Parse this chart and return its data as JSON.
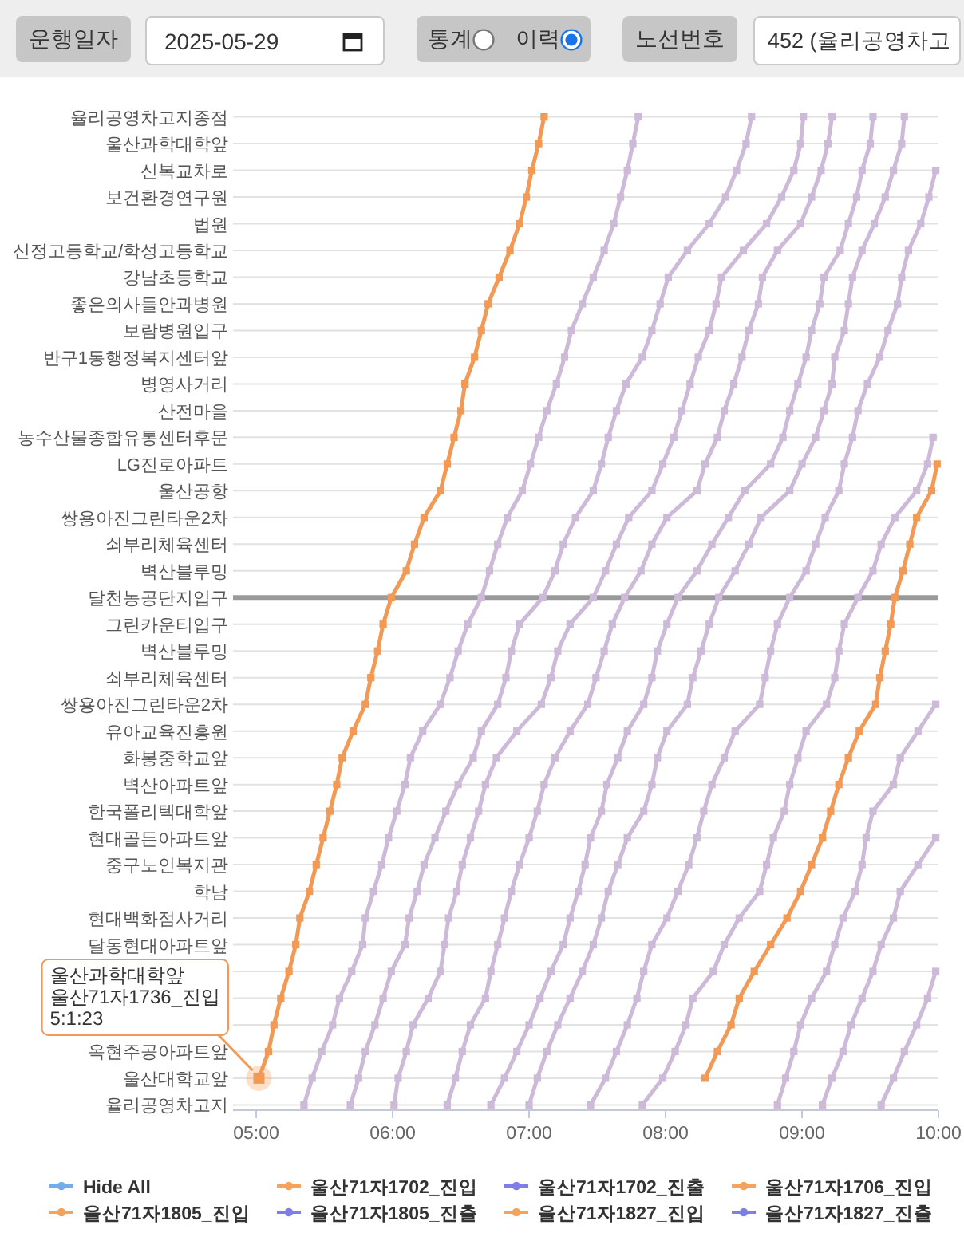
{
  "chart_data": {
    "type": "line",
    "orientation": "horizontal",
    "grid": "y",
    "marker": "square",
    "legend": "bottom",
    "categories": [
      "율리공영차고지종점",
      "울산과학대학앞",
      "신복교차로",
      "보건환경연구원",
      "법원",
      "신정고등학교/학성고등학교",
      "강남초등학교",
      "좋은의사들안과병원",
      "보람병원입구",
      "반구1동행정복지센터앞",
      "병영사거리",
      "산전마을",
      "농수산물종합유통센터후문",
      "LG진로아파트",
      "울산공항",
      "쌍용아진그린타운2차",
      "쇠부리체육센터",
      "벽산블루밍",
      "달천농공단지입구",
      "그린카운티입구",
      "벽산블루밍",
      "쇠부리체육센터",
      "쌍용아진그린타운2차",
      "유아교육진흥원",
      "화봉중학교앞",
      "벽산아파트앞",
      "한국폴리텍대학앞",
      "현대골든아파트앞",
      "중구노인복지관",
      "학남",
      "현대백화점사거리",
      "달동현대아파트앞",
      null,
      null,
      null,
      "옥현주공아파트앞",
      "울산대학교앞",
      "율리공영차고지"
    ],
    "xlim": [
      4.83,
      10.0
    ],
    "xticks": [
      {
        "value": 5,
        "label": "05:00"
      },
      {
        "value": 6,
        "label": "06:00"
      },
      {
        "value": 7,
        "label": "07:00"
      },
      {
        "value": 8,
        "label": "08:00"
      },
      {
        "value": 9,
        "label": "09:00"
      },
      {
        "value": 10,
        "label": "10:00"
      }
    ],
    "ref_lines": [
      {
        "axis": "y",
        "value": "달천농공단지입구",
        "color": "#9a9a9a"
      }
    ],
    "series": [
      {
        "color": "#cdbad8",
        "values": [
          7.8,
          7.76,
          7.72,
          7.67,
          7.62,
          7.55,
          7.47,
          7.39,
          7.31,
          7.26,
          7.2,
          7.13,
          7.07,
          7.01,
          6.95,
          6.84,
          6.77,
          6.71,
          6.65,
          6.55,
          6.48,
          6.42,
          6.35,
          6.22,
          6.13,
          6.09,
          6.03,
          5.97,
          5.92,
          5.86,
          5.8,
          5.78,
          5.7,
          5.61,
          5.56,
          5.48,
          5.41,
          5.35
        ]
      },
      {
        "color": "#cdbad8",
        "values": [
          8.63,
          8.59,
          8.52,
          8.44,
          8.32,
          8.16,
          8.02,
          7.96,
          7.9,
          7.83,
          7.71,
          7.64,
          7.58,
          7.53,
          7.47,
          7.34,
          7.25,
          7.19,
          7.1,
          6.93,
          6.87,
          6.83,
          6.77,
          6.65,
          6.59,
          6.48,
          6.39,
          6.31,
          6.23,
          6.18,
          6.12,
          6.09,
          5.99,
          5.93,
          5.87,
          5.8,
          5.75,
          5.69
        ]
      },
      {
        "color": "#cdbad8",
        "values": [
          9.01,
          8.99,
          8.94,
          8.85,
          8.74,
          8.57,
          8.41,
          8.37,
          8.32,
          8.24,
          8.18,
          8.12,
          8.06,
          7.98,
          7.9,
          7.73,
          7.64,
          7.56,
          7.47,
          7.3,
          7.21,
          7.16,
          7.09,
          6.91,
          6.76,
          6.68,
          6.63,
          6.57,
          6.51,
          6.47,
          6.41,
          6.38,
          6.35,
          6.26,
          6.15,
          6.1,
          6.04,
          6.01
        ]
      },
      {
        "color": "#cdbad8",
        "values": [
          9.22,
          9.19,
          9.14,
          9.07,
          8.99,
          8.82,
          8.71,
          8.68,
          8.61,
          8.56,
          8.5,
          8.43,
          8.38,
          8.29,
          8.23,
          8.01,
          7.9,
          7.82,
          7.7,
          7.61,
          7.55,
          7.49,
          7.43,
          7.3,
          7.19,
          7.11,
          7.06,
          7.0,
          6.93,
          6.87,
          6.82,
          6.77,
          6.72,
          6.68,
          6.57,
          6.51,
          6.46,
          6.4
        ]
      },
      {
        "color": "#cdbad8",
        "values": [
          9.52,
          9.5,
          9.44,
          9.4,
          9.34,
          9.28,
          9.16,
          9.13,
          9.07,
          9.03,
          8.97,
          8.91,
          8.86,
          8.77,
          8.58,
          8.46,
          8.34,
          8.23,
          8.09,
          8.01,
          7.94,
          7.9,
          7.84,
          7.72,
          7.65,
          7.57,
          7.53,
          7.45,
          7.41,
          7.36,
          7.3,
          7.25,
          7.16,
          7.08,
          7.0,
          6.91,
          6.82,
          6.72
        ]
      },
      {
        "color": "#cdbad8",
        "values": [
          9.75,
          9.73,
          9.67,
          9.61,
          9.53,
          9.44,
          9.37,
          9.34,
          9.31,
          9.24,
          9.22,
          9.16,
          9.1,
          9.0,
          8.91,
          8.7,
          8.61,
          8.51,
          8.39,
          8.32,
          8.26,
          8.2,
          8.16,
          8.01,
          7.94,
          7.9,
          7.84,
          7.72,
          7.65,
          7.58,
          7.53,
          7.47,
          7.39,
          7.3,
          7.21,
          7.13,
          7.06,
          7.0
        ]
      },
      {
        "color": "#cdbad8",
        "values": [
          null,
          null,
          9.98,
          9.93,
          9.87,
          9.78,
          9.73,
          9.7,
          9.63,
          9.57,
          9.48,
          9.41,
          9.37,
          9.31,
          9.27,
          9.17,
          9.1,
          9.03,
          8.91,
          8.82,
          8.77,
          8.73,
          8.69,
          8.51,
          8.43,
          8.34,
          8.28,
          8.23,
          8.17,
          8.09,
          8.01,
          7.9,
          7.84,
          7.79,
          7.72,
          7.64,
          7.56,
          7.45
        ]
      },
      {
        "color": "#cdbad8",
        "values": [
          null,
          null,
          null,
          null,
          null,
          null,
          null,
          null,
          null,
          null,
          null,
          null,
          9.96,
          9.92,
          9.84,
          9.68,
          9.58,
          9.52,
          9.41,
          9.31,
          9.27,
          9.24,
          9.18,
          9.03,
          8.97,
          8.91,
          8.87,
          8.79,
          8.74,
          8.69,
          8.54,
          8.43,
          8.35,
          8.2,
          8.15,
          8.07,
          7.98,
          7.83
        ]
      },
      {
        "color": "#cdbad8",
        "values": [
          null,
          null,
          null,
          null,
          null,
          null,
          null,
          null,
          null,
          null,
          null,
          null,
          null,
          null,
          null,
          null,
          null,
          null,
          null,
          null,
          null,
          null,
          9.98,
          9.85,
          9.72,
          9.67,
          9.52,
          9.47,
          9.44,
          9.39,
          9.3,
          9.24,
          9.18,
          9.07,
          8.99,
          8.94,
          8.88,
          8.82
        ]
      },
      {
        "color": "#cdbad8",
        "values": [
          null,
          null,
          null,
          null,
          null,
          null,
          null,
          null,
          null,
          null,
          null,
          null,
          null,
          null,
          null,
          null,
          null,
          null,
          null,
          null,
          null,
          null,
          null,
          null,
          null,
          null,
          null,
          9.98,
          9.85,
          9.72,
          9.67,
          9.58,
          9.52,
          9.44,
          9.36,
          9.3,
          9.22,
          9.15
        ]
      },
      {
        "color": "#cdbad8",
        "values": [
          null,
          null,
          null,
          null,
          null,
          null,
          null,
          null,
          null,
          null,
          null,
          null,
          null,
          null,
          null,
          null,
          null,
          null,
          null,
          null,
          null,
          null,
          null,
          null,
          null,
          null,
          null,
          null,
          null,
          null,
          null,
          null,
          9.98,
          9.92,
          9.84,
          9.75,
          9.67,
          9.58
        ]
      },
      {
        "color": "#f29a55",
        "values": [
          7.11,
          7.07,
          7.02,
          6.98,
          6.93,
          6.86,
          6.78,
          6.7,
          6.65,
          6.6,
          6.53,
          6.5,
          6.45,
          6.4,
          6.35,
          6.23,
          6.16,
          6.1,
          5.99,
          5.93,
          5.89,
          5.84,
          5.8,
          5.71,
          5.63,
          5.59,
          5.54,
          5.49,
          5.44,
          5.39,
          5.32,
          5.29,
          5.24,
          5.18,
          5.13,
          5.09,
          5.02,
          null
        ]
      },
      {
        "color": "#f29a55",
        "values": [
          null,
          null,
          null,
          null,
          null,
          null,
          null,
          null,
          null,
          null,
          null,
          null,
          null,
          9.99,
          9.95,
          9.84,
          9.79,
          9.74,
          9.68,
          9.65,
          9.61,
          9.57,
          9.54,
          9.42,
          9.34,
          9.27,
          9.21,
          9.15,
          9.07,
          8.99,
          8.89,
          8.77,
          8.65,
          8.54,
          8.48,
          8.38,
          8.29,
          null
        ]
      },
      {
        "name": "Hide All",
        "color": "#74acea",
        "values": [
          null,
          null,
          null,
          null,
          null,
          null,
          null,
          null,
          null,
          null,
          null,
          null,
          null,
          null,
          null,
          null,
          null,
          null,
          null,
          null,
          null,
          null,
          null,
          null,
          null,
          null,
          null,
          null,
          null,
          null,
          null,
          null,
          null,
          null,
          null,
          null,
          null,
          null
        ]
      },
      {
        "name": "울산71자1702_진입",
        "color": "#f5a25d",
        "values": [
          null,
          null,
          null,
          null,
          null,
          null,
          null,
          null,
          null,
          null,
          null,
          null,
          null,
          null,
          null,
          null,
          null,
          null,
          null,
          null,
          null,
          null,
          null,
          null,
          null,
          null,
          null,
          null,
          null,
          null,
          null,
          null,
          null,
          null,
          null,
          null,
          null,
          null
        ]
      },
      {
        "name": "울산71자1702_진출",
        "color": "#7f7ee6",
        "values": [
          null,
          null,
          null,
          null,
          null,
          null,
          null,
          null,
          null,
          null,
          null,
          null,
          null,
          null,
          null,
          null,
          null,
          null,
          null,
          null,
          null,
          null,
          null,
          null,
          null,
          null,
          null,
          null,
          null,
          null,
          null,
          null,
          null,
          null,
          null,
          null,
          null,
          null
        ]
      },
      {
        "name": "울산71자1706_진입",
        "color": "#f5a25d",
        "values": [
          null,
          null,
          null,
          null,
          null,
          null,
          null,
          null,
          null,
          null,
          null,
          null,
          null,
          null,
          null,
          null,
          null,
          null,
          null,
          null,
          null,
          null,
          null,
          null,
          null,
          null,
          null,
          null,
          null,
          null,
          null,
          null,
          null,
          null,
          null,
          null,
          null,
          null
        ]
      },
      {
        "name": "울산71자1805_진입",
        "color": "#f5a25d",
        "values": [
          null,
          null,
          null,
          null,
          null,
          null,
          null,
          null,
          null,
          null,
          null,
          null,
          null,
          null,
          null,
          null,
          null,
          null,
          null,
          null,
          null,
          null,
          null,
          null,
          null,
          null,
          null,
          null,
          null,
          null,
          null,
          null,
          null,
          null,
          null,
          null,
          null,
          null
        ]
      },
      {
        "name": "울산71자1805_진출",
        "color": "#7f7ee6",
        "values": [
          null,
          null,
          null,
          null,
          null,
          null,
          null,
          null,
          null,
          null,
          null,
          null,
          null,
          null,
          null,
          null,
          null,
          null,
          null,
          null,
          null,
          null,
          null,
          null,
          null,
          null,
          null,
          null,
          null,
          null,
          null,
          null,
          null,
          null,
          null,
          null,
          null,
          null
        ]
      },
      {
        "name": "울산71자1827_진입",
        "color": "#f5a25d",
        "values": [
          null,
          null,
          null,
          null,
          null,
          null,
          null,
          null,
          null,
          null,
          null,
          null,
          null,
          null,
          null,
          null,
          null,
          null,
          null,
          null,
          null,
          null,
          null,
          null,
          null,
          null,
          null,
          null,
          null,
          null,
          null,
          null,
          null,
          null,
          null,
          null,
          null,
          null
        ]
      },
      {
        "name": "울산71자1827_진출",
        "color": "#7f7ee6",
        "values": [
          null,
          null,
          null,
          null,
          null,
          null,
          null,
          null,
          null,
          null,
          null,
          null,
          null,
          null,
          null,
          null,
          null,
          null,
          null,
          null,
          null,
          null,
          null,
          null,
          null,
          null,
          null,
          null,
          null,
          null,
          null,
          null,
          null,
          null,
          null,
          null,
          null,
          null
        ]
      }
    ],
    "annotations": [
      "운행일자",
      "2025-05-29",
      "통계",
      "이력",
      "노선번호",
      "452 (율리공영차고",
      {
        "text": "울산과학대학앞\n울산71자1736_진입\n5:1:23",
        "x": 5.02,
        "y": "울산대학교앞"
      }
    ]
  }
}
